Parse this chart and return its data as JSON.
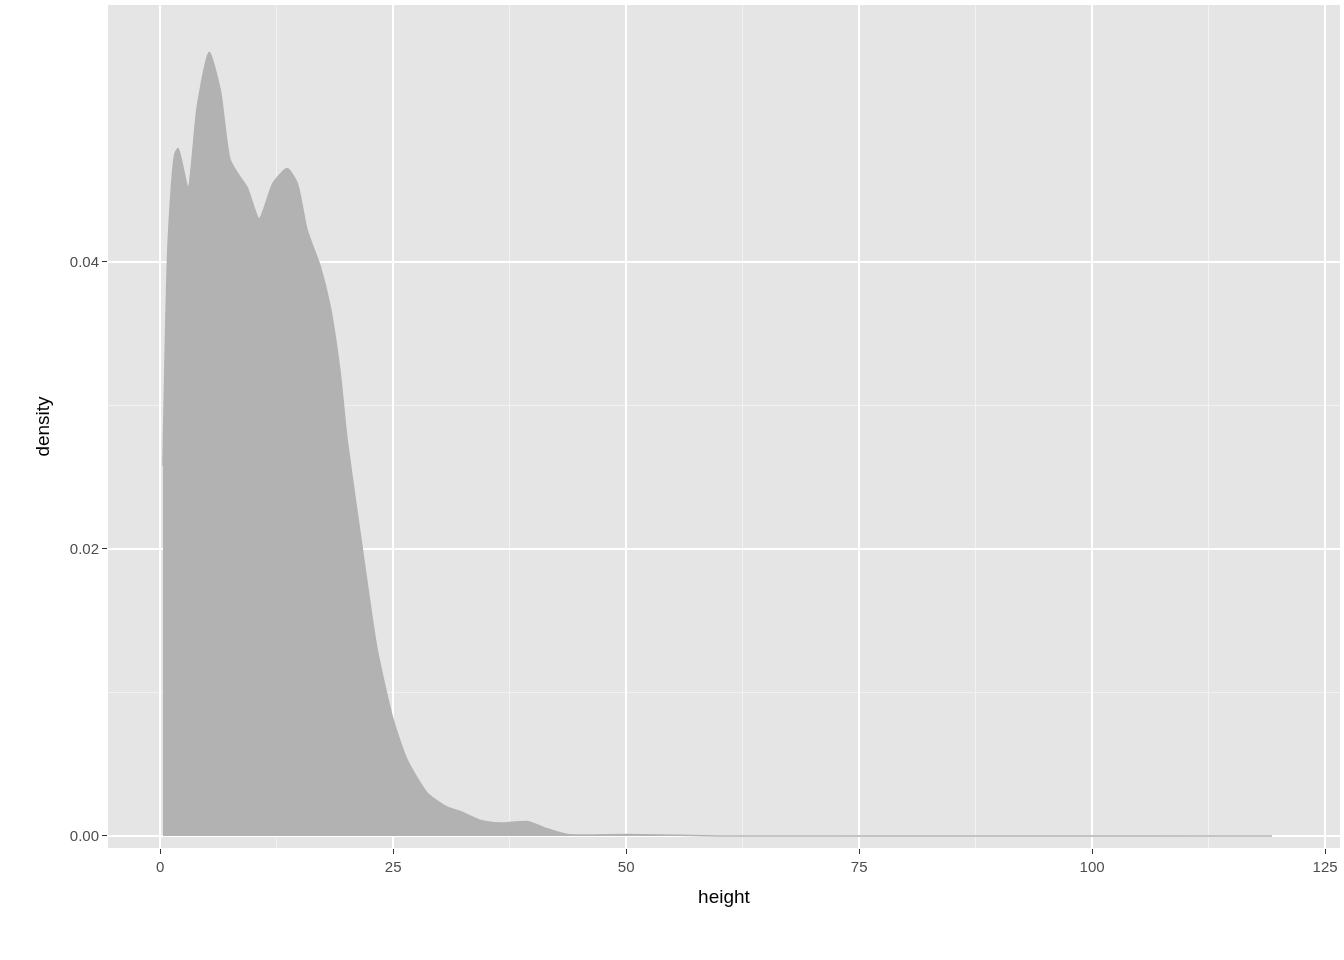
{
  "chart_data": {
    "type": "area",
    "xlabel": "height",
    "ylabel": "density",
    "x": [
      0.3,
      0.86,
      1.61,
      1.93,
      3.0,
      3.97,
      5.26,
      6.44,
      7.51,
      8.58,
      9.33,
      10.62,
      12.12,
      13.63,
      14.7,
      15.77,
      17.17,
      18.24,
      19.31,
      20.06,
      21.67,
      23.28,
      25.0,
      26.5,
      28.65,
      30.8,
      32.2,
      34.3,
      36.5,
      39.4,
      41.5,
      43.7,
      50,
      60,
      119.3
    ],
    "series": [
      {
        "color": "#b2b2b2",
        "values": [
          0.0258,
          0.0415,
          0.0476,
          0.0479,
          0.0452,
          0.0508,
          0.0546,
          0.052,
          0.0471,
          0.0459,
          0.0452,
          0.043,
          0.0455,
          0.0465,
          0.0455,
          0.0422,
          0.0397,
          0.0369,
          0.0323,
          0.0276,
          0.0201,
          0.013,
          0.0081,
          0.0053,
          0.003,
          0.002,
          0.0017,
          0.0011,
          0.0009,
          0.001,
          0.0005,
          0.0001,
          0.0001,
          0,
          0
        ]
      }
    ],
    "xlim": [
      -5.6,
      126.6
    ],
    "xticks": [
      0,
      25,
      50,
      75,
      100,
      125
    ],
    "ylim": [
      -0.00084,
      0.0579
    ],
    "yticks": [
      {
        "value": 0,
        "label": "0.00"
      },
      {
        "value": 0.02,
        "label": "0.02"
      },
      {
        "value": 0.04,
        "label": "0.04"
      }
    ],
    "grid": true
  }
}
